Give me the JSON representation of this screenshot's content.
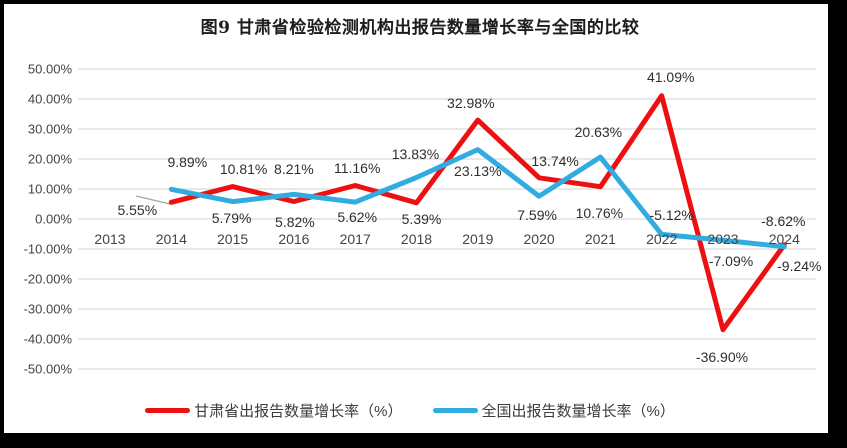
{
  "page": {
    "title": "图9 甘肃省检验检测机构出报告数量增长率与全国的比较"
  },
  "colors": {
    "gansu_red": "#ee1010",
    "national_blue": "#30ace1",
    "gridline": "#d9d9d9",
    "leader_line": "#a6a6a6",
    "page_edge": "#000000"
  },
  "chart_data": {
    "type": "line",
    "title": "图9 甘肃省检验检测机构出报告数量增长率与全国的比较",
    "categories": [
      "2013",
      "2014",
      "2015",
      "2016",
      "2017",
      "2018",
      "2019",
      "2020",
      "2021",
      "2022",
      "2023",
      "2024"
    ],
    "series": [
      {
        "name": "甘肃省出报告数量增长率（%）",
        "color": "#ee1010",
        "values": [
          null,
          5.55,
          10.81,
          5.82,
          11.16,
          5.39,
          32.98,
          13.74,
          10.76,
          41.09,
          -36.9,
          -8.62
        ],
        "labels": [
          null,
          "5.55%",
          "10.81%",
          "5.82%",
          "11.16%",
          "5.39%",
          "32.98%",
          "13.74%",
          "10.76%",
          "41.09%",
          "-36.90%",
          "-8.62%"
        ],
        "label_offsets": [
          null,
          [
            -34,
            8
          ],
          [
            11,
            -18
          ],
          [
            1,
            20
          ],
          [
            2,
            -18
          ],
          [
            5,
            16
          ],
          [
            -7,
            -17
          ],
          [
            16,
            -17
          ],
          [
            -1,
            26
          ],
          [
            9,
            -19
          ],
          [
            -1,
            27
          ],
          [
            -1,
            -24
          ]
        ]
      },
      {
        "name": "全国出报告数量增长率（%）",
        "color": "#30ace1",
        "values": [
          null,
          9.89,
          5.79,
          8.21,
          5.62,
          13.83,
          23.13,
          7.59,
          20.63,
          -5.12,
          -7.09,
          -9.24
        ],
        "labels": [
          null,
          "9.89%",
          "5.79%",
          "8.21%",
          "5.62%",
          "13.83%",
          "23.13%",
          "7.59%",
          "20.63%",
          "-5.12%",
          "-7.09%",
          "-9.24%"
        ],
        "label_offsets": [
          null,
          [
            16,
            -27
          ],
          [
            -1,
            16
          ],
          [
            0,
            -25
          ],
          [
            2,
            15
          ],
          [
            -1,
            -24
          ],
          [
            0,
            21
          ],
          [
            -2,
            19
          ],
          [
            -2,
            -25
          ],
          [
            10,
            -19
          ],
          [
            8,
            21
          ],
          [
            15,
            19
          ]
        ]
      }
    ],
    "ylim": [
      -50,
      50
    ],
    "yticks": [
      "50.00%",
      "40.00%",
      "30.00%",
      "20.00%",
      "10.00%",
      "0.00%",
      "-10.00%",
      "-20.00%",
      "-30.00%",
      "-40.00%",
      "-50.00%"
    ],
    "grid": "horizontal",
    "legend_position": "bottom"
  }
}
